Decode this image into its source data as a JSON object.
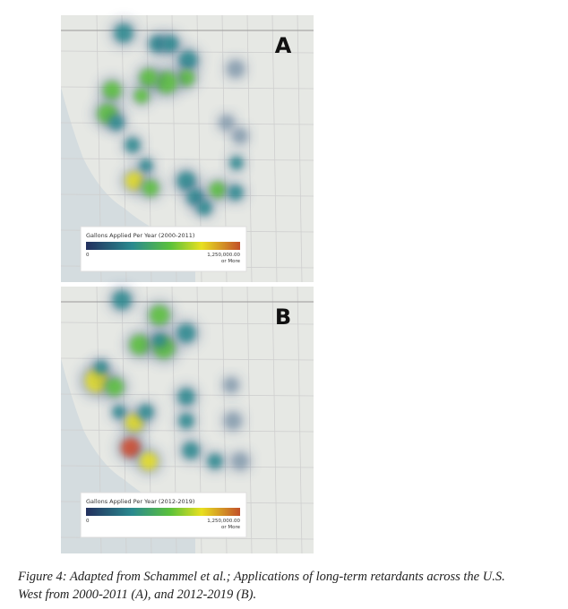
{
  "figure": {
    "panels": [
      {
        "label": "A",
        "legend_title": "Gallons Applied Per Year (2000-2011)",
        "min_label": "0",
        "max_label": "1,250,000.00",
        "max_note": "or More"
      },
      {
        "label": "B",
        "legend_title": "Gallons Applied Per Year (2012-2019)",
        "min_label": "0",
        "max_label": "1,250,000.00",
        "max_note": "or More"
      }
    ],
    "caption": [
      "Figure 4: Adapted from Schammel et al.; Applications of long-term retardants across the U.S.",
      "West from 2000-2011 (A), and 2012-2019 (B)."
    ]
  }
}
